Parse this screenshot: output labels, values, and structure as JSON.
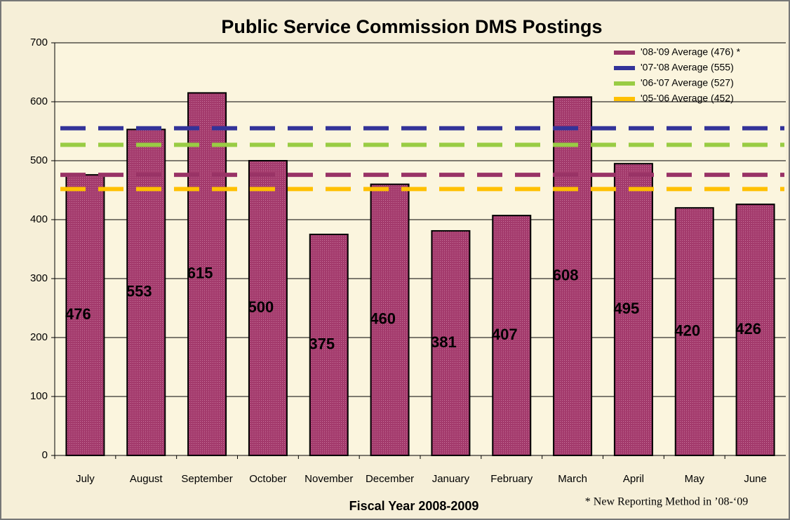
{
  "chart_data": {
    "type": "bar",
    "title": "Public Service Commission DMS Postings",
    "xlabel": "Fiscal Year 2008-2009",
    "annotation": "* New Reporting Method in ’08-‘09",
    "categories": [
      "July",
      "August",
      "September",
      "October",
      "November",
      "December",
      "January",
      "February",
      "March",
      "April",
      "May",
      "June"
    ],
    "values": [
      476,
      553,
      615,
      500,
      375,
      460,
      381,
      407,
      608,
      495,
      420,
      426
    ],
    "color": "#a33a6c",
    "ylim": [
      0,
      700
    ],
    "yticks": [
      0,
      100,
      200,
      300,
      400,
      500,
      600,
      700
    ],
    "grid": true,
    "legend": "upper right",
    "reference_lines": [
      {
        "name": "'08-'09 Average (476) *",
        "color": "#993366",
        "value": 476
      },
      {
        "name": "'07-'08 Average (555)",
        "color": "#333399",
        "value": 555
      },
      {
        "name": "'06-'07 Average (527)",
        "color": "#99cc44",
        "value": 527
      },
      {
        "name": "'05-'06 Average (452)",
        "color": "#ffc000",
        "value": 452
      }
    ]
  }
}
